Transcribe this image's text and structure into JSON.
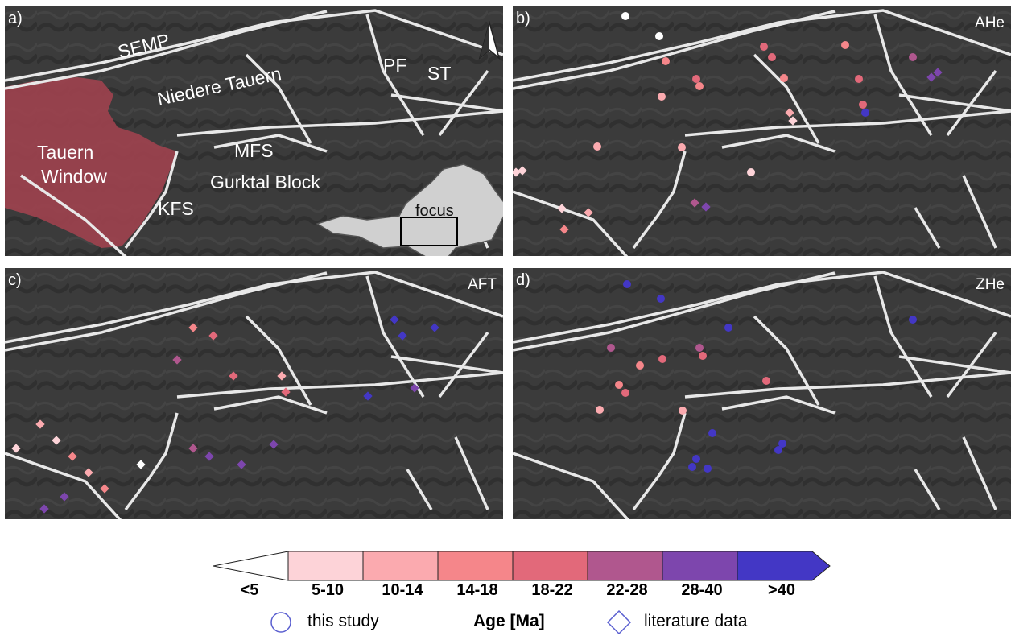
{
  "panels": {
    "a": {
      "label": "a)"
    },
    "b": {
      "label": "b)",
      "method": "AHe"
    },
    "c": {
      "label": "c)",
      "method": "AFT"
    },
    "d": {
      "label": "d)",
      "method": "ZHe"
    }
  },
  "map_labels": {
    "semp": "SEMP",
    "niedere_tauern": "Niedere Tauern",
    "pf": "PF",
    "st": "ST",
    "tauern_line1": "Tauern",
    "tauern_line2": "Window",
    "mfs": "MFS",
    "gurktal": "Gurktal Block",
    "kfs": "KFS",
    "focus": "focus"
  },
  "colorbar": {
    "title": "Age [Ma]",
    "classes": [
      {
        "label": "<5",
        "color": "#ffffff"
      },
      {
        "label": "5-10",
        "color": "#fdd3d8"
      },
      {
        "label": "10-14",
        "color": "#fbaaaf"
      },
      {
        "label": "14-18",
        "color": "#f5868a"
      },
      {
        "label": "18-22",
        "color": "#e2697a"
      },
      {
        "label": "22-28",
        "color": "#b0578e"
      },
      {
        "label": "28-40",
        "color": "#7d46ad"
      },
      {
        "label": ">40",
        "color": "#4337c5"
      }
    ]
  },
  "legend": {
    "this_study": "this study",
    "literature": "literature data"
  },
  "colors": {
    "map_bg": "#3b3b3b",
    "fault": "#e8e8e8",
    "tauern_window": "#a0434f",
    "outline": "#5a5fd0"
  }
}
